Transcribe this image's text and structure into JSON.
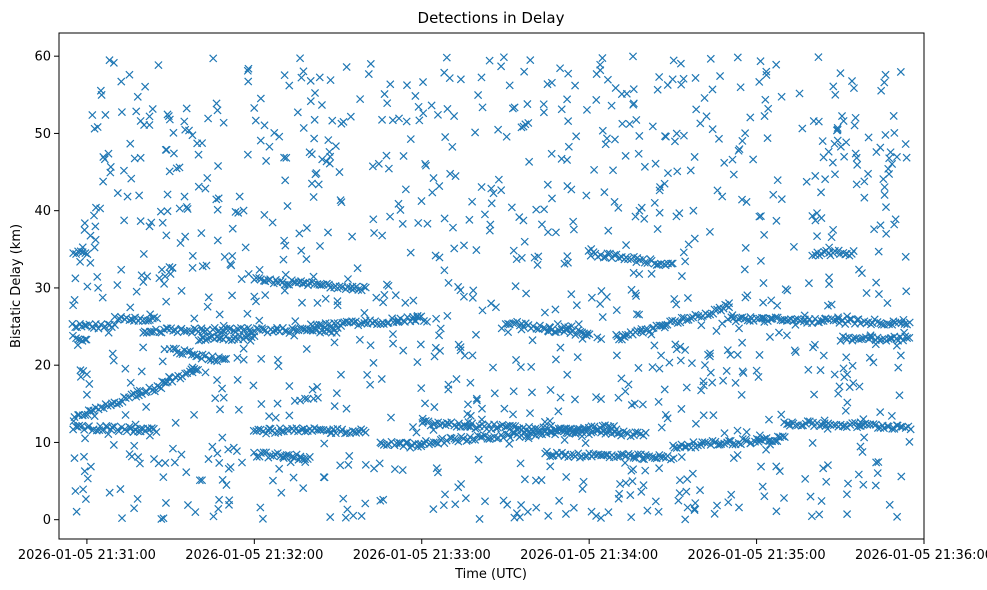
{
  "chart_data": {
    "type": "scatter",
    "title": "Detections in Delay",
    "xlabel": "Time (UTC)",
    "ylabel": "Bistatic Delay (km)",
    "x_is_time": true,
    "xlim": [
      "2026-01-05 21:30:50",
      "2026-01-05 21:36:00"
    ],
    "ylim": [
      -2.5,
      63
    ],
    "x_ticks": [
      "2026-01-05 21:31:00",
      "2026-01-05 21:32:00",
      "2026-01-05 21:33:00",
      "2026-01-05 21:34:00",
      "2026-01-05 21:35:00",
      "2026-01-05 21:36:00"
    ],
    "x_tick_labels": [
      "2026-01-05 21:31:00",
      "2026-01-05 21:32:00",
      "2026-01-05 21:33:00",
      "2026-01-05 21:34:00",
      "2026-01-05 21:35:00",
      "2026-01-05 21:36:00"
    ],
    "y_ticks": [
      0,
      10,
      20,
      30,
      40,
      50,
      60
    ],
    "y_tick_labels": [
      "0",
      "10",
      "20",
      "30",
      "40",
      "50",
      "60"
    ],
    "grid": false,
    "marker": "x",
    "color": "#1f77b4",
    "data_range": {
      "x": [
        "2026-01-05 21:30:55",
        "2026-01-05 21:35:55"
      ],
      "y": [
        0,
        60
      ]
    },
    "tracks": [
      {
        "x": [
          "2026-01-05 21:30:55",
          "2026-01-05 21:31:40"
        ],
        "y": [
          13.0,
          19.5
        ]
      },
      {
        "x": [
          "2026-01-05 21:30:55",
          "2026-01-05 21:31:25"
        ],
        "y": [
          12.0,
          11.5
        ]
      },
      {
        "x": [
          "2026-01-05 21:30:55",
          "2026-01-05 21:31:10"
        ],
        "y": [
          25.0,
          25.0
        ]
      },
      {
        "x": [
          "2026-01-05 21:30:55",
          "2026-01-05 21:31:00"
        ],
        "y": [
          23.5,
          23.5
        ]
      },
      {
        "x": [
          "2026-01-05 21:30:55",
          "2026-01-05 21:31:00"
        ],
        "y": [
          34.5,
          34.5
        ]
      },
      {
        "x": [
          "2026-01-05 21:31:10",
          "2026-01-05 21:31:25"
        ],
        "y": [
          26.0,
          26.0
        ]
      },
      {
        "x": [
          "2026-01-05 21:31:20",
          "2026-01-05 21:32:30"
        ],
        "y": [
          24.5,
          24.5
        ]
      },
      {
        "x": [
          "2026-01-05 21:31:40",
          "2026-01-05 21:32:00"
        ],
        "y": [
          23.5,
          23.5
        ]
      },
      {
        "x": [
          "2026-01-05 21:31:30",
          "2026-01-05 21:31:50"
        ],
        "y": [
          22.0,
          20.5
        ]
      },
      {
        "x": [
          "2026-01-05 21:32:00",
          "2026-01-05 21:32:40"
        ],
        "y": [
          31.0,
          30.0
        ]
      },
      {
        "x": [
          "2026-01-05 21:32:00",
          "2026-01-05 21:32:40"
        ],
        "y": [
          11.5,
          11.5
        ]
      },
      {
        "x": [
          "2026-01-05 21:32:00",
          "2026-01-05 21:32:20"
        ],
        "y": [
          8.5,
          8.0
        ]
      },
      {
        "x": [
          "2026-01-05 21:32:20",
          "2026-01-05 21:33:00"
        ],
        "y": [
          25.0,
          26.0
        ]
      },
      {
        "x": [
          "2026-01-05 21:32:45",
          "2026-01-05 21:33:00"
        ],
        "y": [
          10.0,
          9.5
        ]
      },
      {
        "x": [
          "2026-01-05 21:33:00",
          "2026-01-05 21:34:20"
        ],
        "y": [
          12.5,
          11.0
        ]
      },
      {
        "x": [
          "2026-01-05 21:33:00",
          "2026-01-05 21:34:10"
        ],
        "y": [
          10.0,
          12.0
        ]
      },
      {
        "x": [
          "2026-01-05 21:33:30",
          "2026-01-05 21:34:00"
        ],
        "y": [
          25.5,
          24.0
        ]
      },
      {
        "x": [
          "2026-01-05 21:33:45",
          "2026-01-05 21:34:30"
        ],
        "y": [
          8.5,
          8.0
        ]
      },
      {
        "x": [
          "2026-01-05 21:34:00",
          "2026-01-05 21:34:30"
        ],
        "y": [
          34.5,
          33.0
        ]
      },
      {
        "x": [
          "2026-01-05 21:34:10",
          "2026-01-05 21:34:50"
        ],
        "y": [
          23.5,
          27.5
        ]
      },
      {
        "x": [
          "2026-01-05 21:34:30",
          "2026-01-05 21:35:10"
        ],
        "y": [
          9.5,
          10.5
        ]
      },
      {
        "x": [
          "2026-01-05 21:34:50",
          "2026-01-05 21:35:55"
        ],
        "y": [
          26.0,
          25.5
        ]
      },
      {
        "x": [
          "2026-01-05 21:35:10",
          "2026-01-05 21:35:55"
        ],
        "y": [
          12.5,
          12.0
        ]
      },
      {
        "x": [
          "2026-01-05 21:35:20",
          "2026-01-05 21:35:35"
        ],
        "y": [
          34.5,
          34.5
        ]
      },
      {
        "x": [
          "2026-01-05 21:35:30",
          "2026-01-05 21:35:55"
        ],
        "y": [
          23.5,
          23.5
        ]
      }
    ],
    "background_noise": {
      "x": [
        "2026-01-05 21:30:55",
        "2026-01-05 21:35:55"
      ],
      "y": [
        0,
        60
      ],
      "count": 1100
    }
  }
}
